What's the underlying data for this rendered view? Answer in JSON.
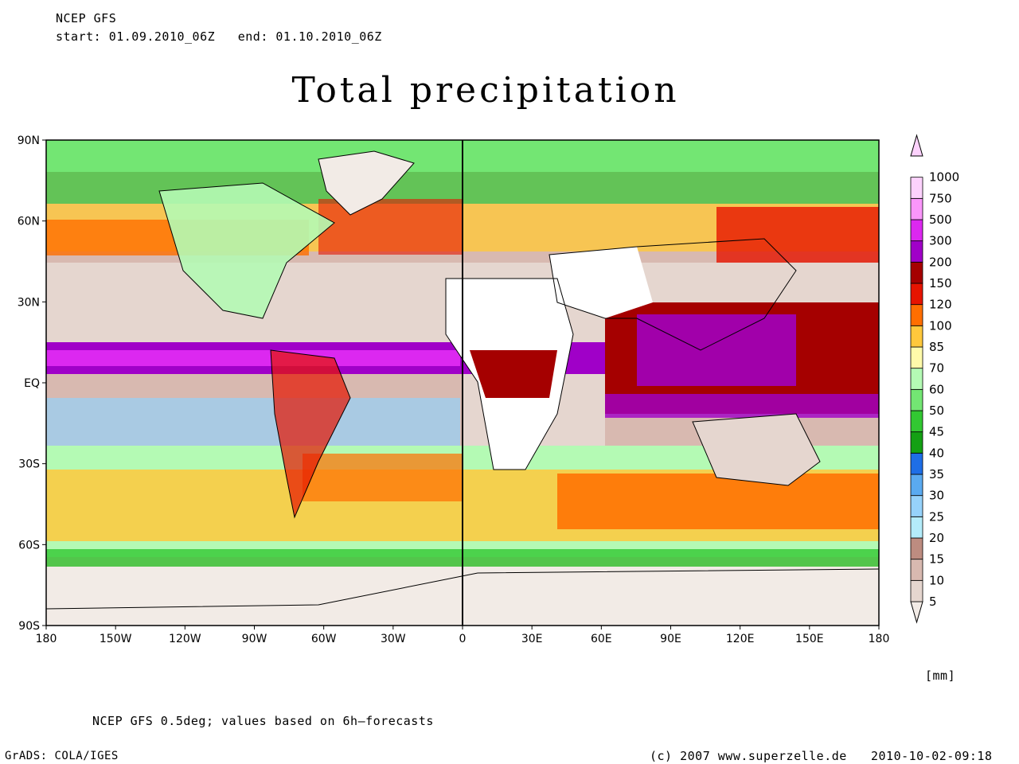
{
  "header": {
    "model": "NCEP GFS",
    "start_label": "start:",
    "start": "01.09.2010_06Z",
    "end_label": "end:",
    "end": "01.10.2010_06Z"
  },
  "title": "Total precipitation",
  "map": {
    "lat_ticks": [
      "90N",
      "60N",
      "30N",
      "EQ",
      "30S",
      "60S",
      "90S"
    ],
    "lon_ticks": [
      "180",
      "150W",
      "120W",
      "90W",
      "60W",
      "30W",
      "0",
      "30E",
      "60E",
      "90E",
      "120E",
      "150E",
      "180"
    ]
  },
  "colorbar": {
    "unit": "[mm]",
    "levels": [
      "5",
      "10",
      "15",
      "20",
      "25",
      "30",
      "35",
      "40",
      "45",
      "50",
      "60",
      "70",
      "85",
      "100",
      "120",
      "150",
      "200",
      "300",
      "500",
      "750",
      "1000"
    ],
    "colors": [
      "#f2ebe6",
      "#e5d6cf",
      "#d8b9b0",
      "#bd8c80",
      "#b4ecfa",
      "#96d2fa",
      "#5aaaf0",
      "#1e6ee6",
      "#14a014",
      "#32c832",
      "#73e673",
      "#b4fab4",
      "#fffaaa",
      "#ffc83c",
      "#ff6e00",
      "#e61400",
      "#a50000",
      "#a000c8",
      "#dc28f0",
      "#fa96fa",
      "#fcd2fc"
    ]
  },
  "footer": {
    "note": "NCEP GFS 0.5deg; values based on 6h—forecasts",
    "software": "GrADS: COLA/IGES",
    "copyright": "(c) 2007 www.superzelle.de",
    "timestamp": "2010-10-02-09:18"
  }
}
